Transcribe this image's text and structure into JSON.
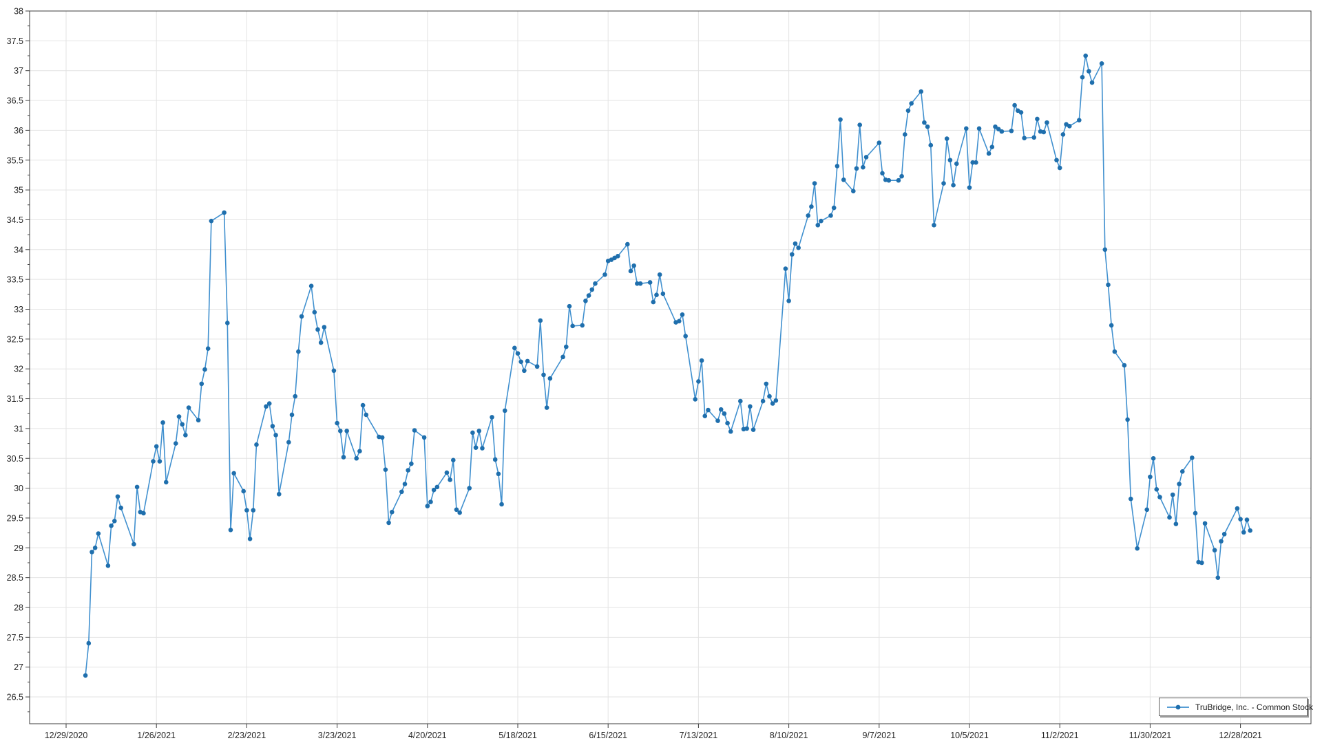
{
  "chart_data": {
    "type": "line",
    "title": "",
    "xlabel": "",
    "ylabel": "",
    "grid": true,
    "legend_position": "bottom-right",
    "y_axis": {
      "min": 26.05,
      "max": 38,
      "major_step": 0.5,
      "minor_step": 0.25
    },
    "x_ticks": [
      "12/29/2020",
      "1/26/2021",
      "2/23/2021",
      "3/23/2021",
      "4/20/2021",
      "5/18/2021",
      "6/15/2021",
      "7/13/2021",
      "8/10/2021",
      "9/7/2021",
      "10/5/2021",
      "11/2/2021",
      "11/30/2021",
      "12/28/2021"
    ],
    "y_tick_labels": [
      "26.5",
      "27",
      "27.5",
      "28",
      "28.5",
      "29",
      "29.5",
      "30",
      "30.5",
      "31",
      "31.5",
      "32",
      "32.5",
      "33",
      "33.5",
      "34",
      "34.5",
      "35",
      "35.5",
      "36",
      "36.5",
      "37",
      "37.5",
      "38"
    ],
    "series": [
      {
        "name": "TruBridge, Inc. - Common Stock",
        "color": "#4090cf",
        "marker_color": "#1f6fad",
        "points": [
          [
            "2021-01-04",
            26.86
          ],
          [
            "2021-01-05",
            27.4
          ],
          [
            "2021-01-06",
            28.93
          ],
          [
            "2021-01-07",
            29.0
          ],
          [
            "2021-01-08",
            29.24
          ],
          [
            "2021-01-11",
            28.7
          ],
          [
            "2021-01-12",
            29.37
          ],
          [
            "2021-01-13",
            29.45
          ],
          [
            "2021-01-14",
            29.86
          ],
          [
            "2021-01-15",
            29.67
          ],
          [
            "2021-01-19",
            29.06
          ],
          [
            "2021-01-20",
            30.02
          ],
          [
            "2021-01-21",
            29.6
          ],
          [
            "2021-01-22",
            29.58
          ],
          [
            "2021-01-25",
            30.45
          ],
          [
            "2021-01-26",
            30.7
          ],
          [
            "2021-01-27",
            30.45
          ],
          [
            "2021-01-28",
            31.1
          ],
          [
            "2021-01-29",
            30.1
          ],
          [
            "2021-02-01",
            30.75
          ],
          [
            "2021-02-02",
            31.2
          ],
          [
            "2021-02-03",
            31.07
          ],
          [
            "2021-02-04",
            30.89
          ],
          [
            "2021-02-05",
            31.35
          ],
          [
            "2021-02-08",
            31.14
          ],
          [
            "2021-02-09",
            31.75
          ],
          [
            "2021-02-10",
            31.99
          ],
          [
            "2021-02-11",
            32.34
          ],
          [
            "2021-02-12",
            34.48
          ],
          [
            "2021-02-16",
            34.62
          ],
          [
            "2021-02-17",
            32.77
          ],
          [
            "2021-02-18",
            29.3
          ],
          [
            "2021-02-19",
            30.25
          ],
          [
            "2021-02-22",
            29.95
          ],
          [
            "2021-02-23",
            29.63
          ],
          [
            "2021-02-24",
            29.15
          ],
          [
            "2021-02-25",
            29.63
          ],
          [
            "2021-02-26",
            30.73
          ],
          [
            "2021-03-01",
            31.37
          ],
          [
            "2021-03-02",
            31.42
          ],
          [
            "2021-03-03",
            31.04
          ],
          [
            "2021-03-04",
            30.89
          ],
          [
            "2021-03-05",
            29.9
          ],
          [
            "2021-03-08",
            30.77
          ],
          [
            "2021-03-09",
            31.23
          ],
          [
            "2021-03-10",
            31.54
          ],
          [
            "2021-03-11",
            32.29
          ],
          [
            "2021-03-12",
            32.88
          ],
          [
            "2021-03-15",
            33.39
          ],
          [
            "2021-03-16",
            32.95
          ],
          [
            "2021-03-17",
            32.66
          ],
          [
            "2021-03-18",
            32.44
          ],
          [
            "2021-03-19",
            32.7
          ],
          [
            "2021-03-22",
            31.97
          ],
          [
            "2021-03-23",
            31.09
          ],
          [
            "2021-03-24",
            30.96
          ],
          [
            "2021-03-25",
            30.52
          ],
          [
            "2021-03-26",
            30.96
          ],
          [
            "2021-03-29",
            30.5
          ],
          [
            "2021-03-30",
            30.62
          ],
          [
            "2021-03-31",
            31.39
          ],
          [
            "2021-04-01",
            31.23
          ],
          [
            "2021-04-05",
            30.86
          ],
          [
            "2021-04-06",
            30.85
          ],
          [
            "2021-04-07",
            30.31
          ],
          [
            "2021-04-08",
            29.42
          ],
          [
            "2021-04-09",
            29.6
          ],
          [
            "2021-04-12",
            29.94
          ],
          [
            "2021-04-13",
            30.07
          ],
          [
            "2021-04-14",
            30.3
          ],
          [
            "2021-04-15",
            30.41
          ],
          [
            "2021-04-16",
            30.97
          ],
          [
            "2021-04-19",
            30.85
          ],
          [
            "2021-04-20",
            29.7
          ],
          [
            "2021-04-21",
            29.77
          ],
          [
            "2021-04-22",
            29.97
          ],
          [
            "2021-04-23",
            30.02
          ],
          [
            "2021-04-26",
            30.26
          ],
          [
            "2021-04-27",
            30.14
          ],
          [
            "2021-04-28",
            30.47
          ],
          [
            "2021-04-29",
            29.64
          ],
          [
            "2021-04-30",
            29.59
          ],
          [
            "2021-05-03",
            30.0
          ],
          [
            "2021-05-04",
            30.93
          ],
          [
            "2021-05-05",
            30.68
          ],
          [
            "2021-05-06",
            30.96
          ],
          [
            "2021-05-07",
            30.67
          ],
          [
            "2021-05-10",
            31.19
          ],
          [
            "2021-05-11",
            30.48
          ],
          [
            "2021-05-12",
            30.24
          ],
          [
            "2021-05-13",
            29.73
          ],
          [
            "2021-05-14",
            31.3
          ],
          [
            "2021-05-17",
            32.35
          ],
          [
            "2021-05-18",
            32.26
          ],
          [
            "2021-05-19",
            32.12
          ],
          [
            "2021-05-20",
            31.97
          ],
          [
            "2021-05-21",
            32.13
          ],
          [
            "2021-05-24",
            32.04
          ],
          [
            "2021-05-25",
            32.81
          ],
          [
            "2021-05-26",
            31.9
          ],
          [
            "2021-05-27",
            31.35
          ],
          [
            "2021-05-28",
            31.84
          ],
          [
            "2021-06-01",
            32.2
          ],
          [
            "2021-06-02",
            32.37
          ],
          [
            "2021-06-03",
            33.05
          ],
          [
            "2021-06-04",
            32.72
          ],
          [
            "2021-06-07",
            32.73
          ],
          [
            "2021-06-08",
            33.14
          ],
          [
            "2021-06-09",
            33.23
          ],
          [
            "2021-06-10",
            33.33
          ],
          [
            "2021-06-11",
            33.43
          ],
          [
            "2021-06-14",
            33.58
          ],
          [
            "2021-06-15",
            33.81
          ],
          [
            "2021-06-16",
            33.83
          ],
          [
            "2021-06-17",
            33.86
          ],
          [
            "2021-06-18",
            33.89
          ],
          [
            "2021-06-21",
            34.09
          ],
          [
            "2021-06-22",
            33.64
          ],
          [
            "2021-06-23",
            33.73
          ],
          [
            "2021-06-24",
            33.43
          ],
          [
            "2021-06-25",
            33.43
          ],
          [
            "2021-06-28",
            33.45
          ],
          [
            "2021-06-29",
            33.12
          ],
          [
            "2021-06-30",
            33.24
          ],
          [
            "2021-07-01",
            33.58
          ],
          [
            "2021-07-02",
            33.26
          ],
          [
            "2021-07-06",
            32.78
          ],
          [
            "2021-07-07",
            32.8
          ],
          [
            "2021-07-08",
            32.91
          ],
          [
            "2021-07-09",
            32.55
          ],
          [
            "2021-07-12",
            31.49
          ],
          [
            "2021-07-13",
            31.79
          ],
          [
            "2021-07-14",
            32.14
          ],
          [
            "2021-07-15",
            31.21
          ],
          [
            "2021-07-16",
            31.31
          ],
          [
            "2021-07-19",
            31.13
          ],
          [
            "2021-07-20",
            31.32
          ],
          [
            "2021-07-21",
            31.25
          ],
          [
            "2021-07-22",
            31.09
          ],
          [
            "2021-07-23",
            30.95
          ],
          [
            "2021-07-26",
            31.46
          ],
          [
            "2021-07-27",
            30.99
          ],
          [
            "2021-07-28",
            31.0
          ],
          [
            "2021-07-29",
            31.37
          ],
          [
            "2021-07-30",
            30.98
          ],
          [
            "2021-08-02",
            31.46
          ],
          [
            "2021-08-03",
            31.75
          ],
          [
            "2021-08-04",
            31.54
          ],
          [
            "2021-08-05",
            31.42
          ],
          [
            "2021-08-06",
            31.47
          ],
          [
            "2021-08-09",
            33.68
          ],
          [
            "2021-08-10",
            33.14
          ],
          [
            "2021-08-11",
            33.92
          ],
          [
            "2021-08-12",
            34.1
          ],
          [
            "2021-08-13",
            34.03
          ],
          [
            "2021-08-16",
            34.57
          ],
          [
            "2021-08-17",
            34.72
          ],
          [
            "2021-08-18",
            35.11
          ],
          [
            "2021-08-19",
            34.41
          ],
          [
            "2021-08-20",
            34.48
          ],
          [
            "2021-08-23",
            34.57
          ],
          [
            "2021-08-24",
            34.7
          ],
          [
            "2021-08-25",
            35.4
          ],
          [
            "2021-08-26",
            36.18
          ],
          [
            "2021-08-27",
            35.17
          ],
          [
            "2021-08-30",
            34.98
          ],
          [
            "2021-08-31",
            35.36
          ],
          [
            "2021-09-01",
            36.09
          ],
          [
            "2021-09-02",
            35.38
          ],
          [
            "2021-09-03",
            35.55
          ],
          [
            "2021-09-07",
            35.79
          ],
          [
            "2021-09-08",
            35.28
          ],
          [
            "2021-09-09",
            35.17
          ],
          [
            "2021-09-10",
            35.16
          ],
          [
            "2021-09-13",
            35.16
          ],
          [
            "2021-09-14",
            35.23
          ],
          [
            "2021-09-15",
            35.93
          ],
          [
            "2021-09-16",
            36.33
          ],
          [
            "2021-09-17",
            36.45
          ],
          [
            "2021-09-20",
            36.65
          ],
          [
            "2021-09-21",
            36.13
          ],
          [
            "2021-09-22",
            36.06
          ],
          [
            "2021-09-23",
            35.75
          ],
          [
            "2021-09-24",
            34.41
          ],
          [
            "2021-09-27",
            35.11
          ],
          [
            "2021-09-28",
            35.86
          ],
          [
            "2021-09-29",
            35.5
          ],
          [
            "2021-09-30",
            35.08
          ],
          [
            "2021-10-01",
            35.44
          ],
          [
            "2021-10-04",
            36.03
          ],
          [
            "2021-10-05",
            35.04
          ],
          [
            "2021-10-06",
            35.46
          ],
          [
            "2021-10-07",
            35.46
          ],
          [
            "2021-10-08",
            36.03
          ],
          [
            "2021-10-11",
            35.61
          ],
          [
            "2021-10-12",
            35.72
          ],
          [
            "2021-10-13",
            36.06
          ],
          [
            "2021-10-14",
            36.02
          ],
          [
            "2021-10-15",
            35.98
          ],
          [
            "2021-10-18",
            35.99
          ],
          [
            "2021-10-19",
            36.42
          ],
          [
            "2021-10-20",
            36.33
          ],
          [
            "2021-10-21",
            36.3
          ],
          [
            "2021-10-22",
            35.87
          ],
          [
            "2021-10-25",
            35.88
          ],
          [
            "2021-10-26",
            36.19
          ],
          [
            "2021-10-27",
            35.98
          ],
          [
            "2021-10-28",
            35.97
          ],
          [
            "2021-10-29",
            36.13
          ],
          [
            "2021-11-01",
            35.5
          ],
          [
            "2021-11-02",
            35.37
          ],
          [
            "2021-11-03",
            35.93
          ],
          [
            "2021-11-04",
            36.1
          ],
          [
            "2021-11-05",
            36.07
          ],
          [
            "2021-11-08",
            36.17
          ],
          [
            "2021-11-09",
            36.89
          ],
          [
            "2021-11-10",
            37.25
          ],
          [
            "2021-11-11",
            36.99
          ],
          [
            "2021-11-12",
            36.8
          ],
          [
            "2021-11-15",
            37.12
          ],
          [
            "2021-11-16",
            34.0
          ],
          [
            "2021-11-17",
            33.41
          ],
          [
            "2021-11-18",
            32.73
          ],
          [
            "2021-11-19",
            32.29
          ],
          [
            "2021-11-22",
            32.06
          ],
          [
            "2021-11-23",
            31.15
          ],
          [
            "2021-11-24",
            29.82
          ],
          [
            "2021-11-26",
            28.99
          ],
          [
            "2021-11-29",
            29.64
          ],
          [
            "2021-11-30",
            30.19
          ],
          [
            "2021-12-01",
            30.5
          ],
          [
            "2021-12-02",
            29.98
          ],
          [
            "2021-12-03",
            29.85
          ],
          [
            "2021-12-06",
            29.51
          ],
          [
            "2021-12-07",
            29.89
          ],
          [
            "2021-12-08",
            29.4
          ],
          [
            "2021-12-09",
            30.07
          ],
          [
            "2021-12-10",
            30.28
          ],
          [
            "2021-12-13",
            30.51
          ],
          [
            "2021-12-14",
            29.58
          ],
          [
            "2021-12-15",
            28.76
          ],
          [
            "2021-12-16",
            28.75
          ],
          [
            "2021-12-17",
            29.41
          ],
          [
            "2021-12-20",
            28.96
          ],
          [
            "2021-12-21",
            28.5
          ],
          [
            "2021-12-22",
            29.11
          ],
          [
            "2021-12-23",
            29.23
          ],
          [
            "2021-12-27",
            29.66
          ],
          [
            "2021-12-28",
            29.48
          ],
          [
            "2021-12-29",
            29.26
          ],
          [
            "2021-12-30",
            29.47
          ],
          [
            "2021-12-31",
            29.29
          ]
        ]
      }
    ]
  },
  "legend": {
    "label": "TruBridge, Inc. - Common Stock"
  },
  "colors": {
    "grid": "#e3e3e3",
    "axis": "#3c3c3c",
    "background": "#ffffff",
    "series_line": "#4090cf",
    "series_marker": "#1f6fad"
  }
}
